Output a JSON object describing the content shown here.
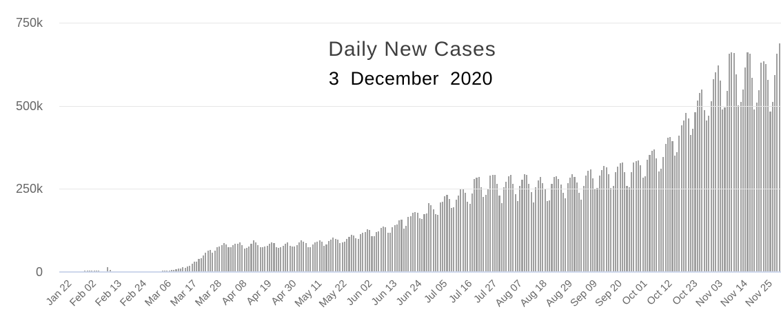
{
  "chart_data": {
    "type": "bar",
    "title": "Daily New Cases",
    "subtitle": "3 December 2020",
    "xlabel": "",
    "ylabel": "",
    "ylim": [
      0,
      750000
    ],
    "grid": "horizontal",
    "legend": "none",
    "y_ticks": [
      {
        "value": 0,
        "label": "0"
      },
      {
        "value": 250000,
        "label": "250k"
      },
      {
        "value": 500000,
        "label": "500k"
      },
      {
        "value": 750000,
        "label": "750k"
      }
    ],
    "x_start": "Jan 22",
    "x_end": "Dec 03",
    "xtick_interval_days": 11,
    "xtick_labels": [
      "Jan 22",
      "Feb 02",
      "Feb 13",
      "Feb 24",
      "Mar 06",
      "Mar 17",
      "Mar 28",
      "Apr 08",
      "Apr 19",
      "Apr 30",
      "May 11",
      "May 22",
      "Jun 02",
      "Jun 13",
      "Jun 24",
      "Jul 05",
      "Jul 16",
      "Jul 27",
      "Aug 07",
      "Aug 18",
      "Aug 29",
      "Sep 09",
      "Sep 20",
      "Oct 01",
      "Oct 12",
      "Oct 23",
      "Nov 03",
      "Nov 14",
      "Nov 25"
    ],
    "values": [
      265,
      468,
      703,
      786,
      1781,
      1477,
      1755,
      2000,
      2127,
      2603,
      2837,
      3239,
      3930,
      3177,
      3376,
      3727,
      3160,
      3419,
      2626,
      2988,
      2577,
      15151,
      6740,
      2560,
      2162,
      2072,
      1890,
      1822,
      587,
      505,
      750,
      563,
      983,
      898,
      1147,
      1364,
      1467,
      1785,
      1825,
      1759,
      2144,
      2592,
      2425,
      2844,
      3090,
      3969,
      3962,
      4162,
      4365,
      5465,
      6368,
      7506,
      10965,
      10977,
      13940,
      11837,
      15824,
      19651,
      24015,
      30276,
      31380,
      40197,
      41353,
      49290,
      58766,
      63937,
      66109,
      58913,
      63655,
      74839,
      76840,
      80552,
      86064,
      82191,
      74696,
      73639,
      81004,
      85050,
      85761,
      89571,
      80889,
      70095,
      73290,
      76504,
      84097,
      95332,
      89021,
      80363,
      74286,
      73636,
      75796,
      78961,
      84670,
      88648,
      87631,
      74997,
      73364,
      74801,
      77976,
      85546,
      88998,
      79065,
      76672,
      76890,
      80775,
      88531,
      94676,
      91761,
      86103,
      75251,
      73884,
      83891,
      89190,
      92104,
      96301,
      90669,
      78663,
      82126,
      93800,
      97731,
      102913,
      99836,
      97160,
      87967,
      90134,
      91928,
      99729,
      106090,
      112119,
      109519,
      102400,
      98606,
      113590,
      117777,
      120762,
      128851,
      125631,
      107634,
      108274,
      119600,
      122359,
      132435,
      137129,
      134725,
      119124,
      117833,
      135095,
      140139,
      142063,
      154845,
      158344,
      131324,
      138937,
      165814,
      167167,
      177329,
      180133,
      178223,
      160634,
      159789,
      174715,
      176233,
      208194,
      200129,
      188177,
      174034,
      171514,
      208476,
      212326,
      227534,
      231474,
      219498,
      193019,
      194021,
      218563,
      230291,
      248162,
      250248,
      237869,
      211688,
      205463,
      236269,
      280647,
      284083,
      285520,
      254900,
      226783,
      232899,
      250851,
      289321,
      292067,
      293049,
      264910,
      230949,
      207021,
      255077,
      272049,
      287772,
      291511,
      266012,
      234890,
      212822,
      258704,
      276702,
      293684,
      291983,
      265797,
      239533,
      208907,
      255540,
      275821,
      286848,
      267149,
      251509,
      213707,
      216508,
      264565,
      285748,
      288651,
      278976,
      263586,
      238417,
      222200,
      266929,
      282973,
      293702,
      285212,
      269836,
      238884,
      216708,
      258678,
      290591,
      304563,
      309572,
      282584,
      250706,
      252843,
      289596,
      306672,
      318686,
      315631,
      294535,
      253736,
      258706,
      299768,
      317597,
      326883,
      329818,
      299986,
      259655,
      253974,
      300792,
      329676,
      333762,
      336620,
      321709,
      284594,
      288114,
      337282,
      351969,
      365482,
      369303,
      342665,
      302907,
      310156,
      345106,
      384754,
      403724,
      406906,
      393747,
      350418,
      361103,
      410432,
      441229,
      455495,
      477915,
      462756,
      412399,
      430421,
      481015,
      516193,
      537701,
      549241,
      487737,
      455433,
      470771,
      513187,
      580832,
      600975,
      620906,
      576557,
      488034,
      494962,
      545763,
      656729,
      660905,
      658546,
      594374,
      500473,
      511919,
      549894,
      615559,
      661598,
      656851,
      584562,
      489818,
      509573,
      546141,
      629881,
      634204,
      625698,
      577414,
      481804,
      512046,
      592583,
      657329,
      688315
    ]
  },
  "style": {
    "bar_color": "#9f9f9f",
    "grid_color": "#e6e6e6",
    "axis_line_color": "#ccd6eb",
    "tick_label_color": "#666666",
    "title_color": "#3f3f3f",
    "subtitle_color": "#000000",
    "background_color": "#ffffff"
  }
}
